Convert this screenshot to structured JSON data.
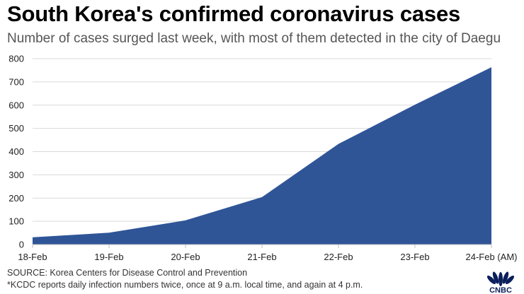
{
  "chart_data": {
    "type": "area",
    "title": "South Korea's confirmed coronavirus cases",
    "subtitle": "Number of cases surged last week, with most of them detected in the city of Daegu",
    "categories": [
      "18-Feb",
      "19-Feb",
      "20-Feb",
      "21-Feb",
      "22-Feb",
      "23-Feb",
      "24-Feb (AM)"
    ],
    "values": [
      31,
      51,
      104,
      204,
      433,
      602,
      763
    ],
    "ylim": [
      0,
      800
    ],
    "yticks": [
      0,
      100,
      200,
      300,
      400,
      500,
      600,
      700,
      800
    ],
    "grid": true,
    "legend": "none",
    "color": "#2f5597",
    "xlabel": "",
    "ylabel": ""
  },
  "footer": {
    "source": "SOURCE: Korea Centers for Disease Control and Prevention",
    "note": "*KCDC reports daily infection numbers twice, once at 9 a.m. local time, and again at 4 p.m."
  },
  "logo": {
    "text": "CNBC",
    "color": "#0b1f5c"
  }
}
